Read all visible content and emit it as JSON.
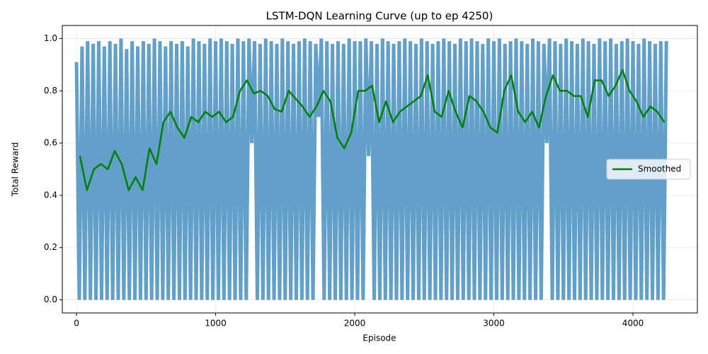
{
  "chart_data": {
    "type": "line",
    "title": "LSTM-DQN Learning Curve (up to ep 4250)",
    "x_label": "Episode",
    "y_label": "Total Reward",
    "xlim": [
      -102,
      4463
    ],
    "ylim": [
      -0.05,
      1.05
    ],
    "xticks": [
      0,
      1000,
      2000,
      3000,
      4000
    ],
    "yticks": [
      {
        "value": 0,
        "label": "0.0"
      },
      {
        "value": 0.2,
        "label": "0.2"
      },
      {
        "value": 0.4,
        "label": "0.4"
      },
      {
        "value": 0.6,
        "label": "0.6"
      },
      {
        "value": 0.8,
        "label": "0.8"
      },
      {
        "value": 1,
        "label": "1.0"
      }
    ],
    "grid": true,
    "legend": "center right",
    "series": [
      {
        "color": "#62a0ca",
        "x": [
          0,
          20,
          40,
          60,
          80,
          100,
          120,
          140,
          160,
          180,
          200,
          220,
          240,
          260,
          280,
          300,
          320,
          340,
          360,
          380,
          400,
          420,
          440,
          460,
          480,
          500,
          520,
          540,
          560,
          580,
          600,
          620,
          640,
          660,
          680,
          700,
          720,
          740,
          760,
          780,
          800,
          820,
          840,
          860,
          880,
          900,
          920,
          940,
          960,
          980,
          1000,
          1020,
          1040,
          1060,
          1080,
          1100,
          1120,
          1140,
          1160,
          1180,
          1200,
          1220,
          1240,
          1260,
          1280,
          1300,
          1320,
          1340,
          1360,
          1380,
          1400,
          1420,
          1440,
          1460,
          1480,
          1500,
          1520,
          1540,
          1560,
          1580,
          1600,
          1620,
          1640,
          1660,
          1680,
          1700,
          1720,
          1740,
          1760,
          1780,
          1800,
          1820,
          1840,
          1860,
          1880,
          1900,
          1920,
          1940,
          1960,
          1980,
          2000,
          2020,
          2040,
          2060,
          2080,
          2100,
          2120,
          2140,
          2160,
          2180,
          2200,
          2220,
          2240,
          2260,
          2280,
          2300,
          2320,
          2340,
          2360,
          2380,
          2400,
          2420,
          2440,
          2460,
          2480,
          2500,
          2520,
          2540,
          2560,
          2580,
          2600,
          2620,
          2640,
          2660,
          2680,
          2700,
          2720,
          2740,
          2760,
          2780,
          2800,
          2820,
          2840,
          2860,
          2880,
          2900,
          2920,
          2940,
          2960,
          2980,
          3000,
          3020,
          3040,
          3060,
          3080,
          3100,
          3120,
          3140,
          3160,
          3180,
          3200,
          3220,
          3240,
          3260,
          3280,
          3300,
          3320,
          3340,
          3360,
          3380,
          3400,
          3420,
          3440,
          3460,
          3480,
          3500,
          3520,
          3540,
          3560,
          3580,
          3600,
          3620,
          3640,
          3660,
          3680,
          3700,
          3720,
          3740,
          3760,
          3780,
          3800,
          3820,
          3840,
          3860,
          3880,
          3900,
          3920,
          3940,
          3960,
          3980,
          4000,
          4020,
          4040,
          4060,
          4080,
          4100,
          4120,
          4140,
          4160,
          4180,
          4200,
          4220,
          4240
        ],
        "values": [
          0.91,
          0,
          0.97,
          0,
          0.99,
          0,
          0.98,
          0,
          0.99,
          0,
          0.97,
          0,
          0.99,
          0,
          0.98,
          0,
          1.0,
          0,
          0.96,
          0,
          0.99,
          0,
          0.97,
          0,
          0.99,
          0,
          0.98,
          0,
          1.0,
          0,
          0.99,
          0,
          0.97,
          0,
          0.99,
          0,
          0.98,
          0,
          0.99,
          0,
          0.97,
          0,
          1.0,
          0,
          0.99,
          0,
          0.98,
          0,
          1.0,
          0,
          0.99,
          0,
          1.0,
          0,
          0.99,
          0,
          0.98,
          0,
          1.0,
          0,
          0.99,
          0,
          1.0,
          0.6,
          0.99,
          0,
          0.98,
          0,
          1.0,
          0,
          0.99,
          0,
          0.98,
          0,
          1.0,
          0,
          0.99,
          0,
          0.98,
          0,
          0.99,
          0,
          1.0,
          0,
          0.99,
          0,
          0.98,
          0.7,
          1.0,
          0,
          0.99,
          0,
          0.98,
          0,
          0.99,
          0,
          0.98,
          0,
          1.0,
          0,
          0.99,
          0,
          0.99,
          0,
          1.0,
          0.55,
          0.99,
          0,
          0.98,
          0,
          1.0,
          0,
          0.99,
          0,
          0.98,
          0,
          0.99,
          0,
          1.0,
          0,
          0.99,
          0,
          0.98,
          0,
          1.0,
          0,
          0.99,
          0,
          0.98,
          0,
          0.99,
          0,
          1.0,
          0,
          0.99,
          0,
          0.98,
          0,
          1.0,
          0,
          0.99,
          0,
          1.0,
          0,
          0.99,
          0,
          0.98,
          0,
          1.0,
          0,
          0.99,
          0,
          1.0,
          0,
          0.98,
          0,
          0.99,
          0,
          1.0,
          0,
          0.99,
          0,
          0.98,
          0,
          1.0,
          0,
          0.99,
          0,
          0.98,
          0.6,
          1.0,
          0,
          0.99,
          0,
          0.98,
          0,
          1.0,
          0,
          0.99,
          0,
          0.98,
          0,
          1.0,
          0,
          0.99,
          0,
          0.98,
          0,
          1.0,
          0,
          0.99,
          0,
          1.0,
          0,
          0.98,
          0,
          0.99,
          0,
          1.0,
          0,
          0.99,
          0,
          0.98,
          0,
          1.0,
          0,
          0.99,
          0,
          0.98,
          0,
          0.99,
          0,
          0.99
        ]
      },
      {
        "name": "Smoothed",
        "color": "#008000",
        "x": [
          25,
          75,
          125,
          175,
          225,
          275,
          325,
          375,
          425,
          475,
          525,
          575,
          625,
          675,
          725,
          775,
          825,
          875,
          925,
          975,
          1025,
          1075,
          1125,
          1175,
          1225,
          1275,
          1325,
          1375,
          1425,
          1475,
          1525,
          1575,
          1625,
          1675,
          1725,
          1775,
          1825,
          1875,
          1925,
          1975,
          2025,
          2075,
          2125,
          2175,
          2225,
          2275,
          2325,
          2375,
          2425,
          2475,
          2525,
          2575,
          2625,
          2675,
          2725,
          2775,
          2825,
          2875,
          2925,
          2975,
          3025,
          3075,
          3125,
          3175,
          3225,
          3275,
          3325,
          3375,
          3425,
          3475,
          3525,
          3575,
          3625,
          3675,
          3725,
          3775,
          3825,
          3875,
          3925,
          3975,
          4025,
          4075,
          4125,
          4175,
          4225
        ],
        "values": [
          0.55,
          0.42,
          0.5,
          0.52,
          0.5,
          0.57,
          0.52,
          0.42,
          0.47,
          0.42,
          0.58,
          0.52,
          0.68,
          0.72,
          0.66,
          0.62,
          0.7,
          0.68,
          0.72,
          0.7,
          0.72,
          0.68,
          0.7,
          0.8,
          0.84,
          0.79,
          0.8,
          0.78,
          0.73,
          0.72,
          0.8,
          0.77,
          0.74,
          0.7,
          0.74,
          0.8,
          0.76,
          0.62,
          0.58,
          0.64,
          0.8,
          0.8,
          0.82,
          0.68,
          0.76,
          0.68,
          0.72,
          0.74,
          0.76,
          0.78,
          0.86,
          0.72,
          0.7,
          0.8,
          0.72,
          0.66,
          0.78,
          0.76,
          0.72,
          0.66,
          0.64,
          0.8,
          0.86,
          0.72,
          0.68,
          0.72,
          0.66,
          0.78,
          0.86,
          0.8,
          0.8,
          0.78,
          0.78,
          0.7,
          0.84,
          0.84,
          0.78,
          0.82,
          0.88,
          0.8,
          0.76,
          0.7,
          0.74,
          0.72,
          0.68
        ]
      }
    ]
  }
}
